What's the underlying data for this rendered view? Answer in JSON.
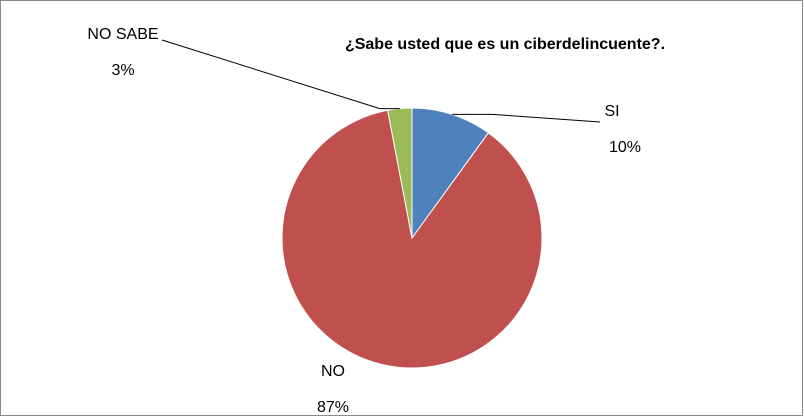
{
  "chart_data": {
    "type": "pie",
    "title": "¿Sabe usted que es un ciberdelincuente?.",
    "categories": [
      "SI",
      "NO",
      "NO SABE"
    ],
    "values": [
      10,
      87,
      3
    ],
    "value_labels": [
      "10%",
      "87%",
      "3%"
    ],
    "colors": [
      "#4f81bd",
      "#c0504d",
      "#9bbb59"
    ]
  }
}
